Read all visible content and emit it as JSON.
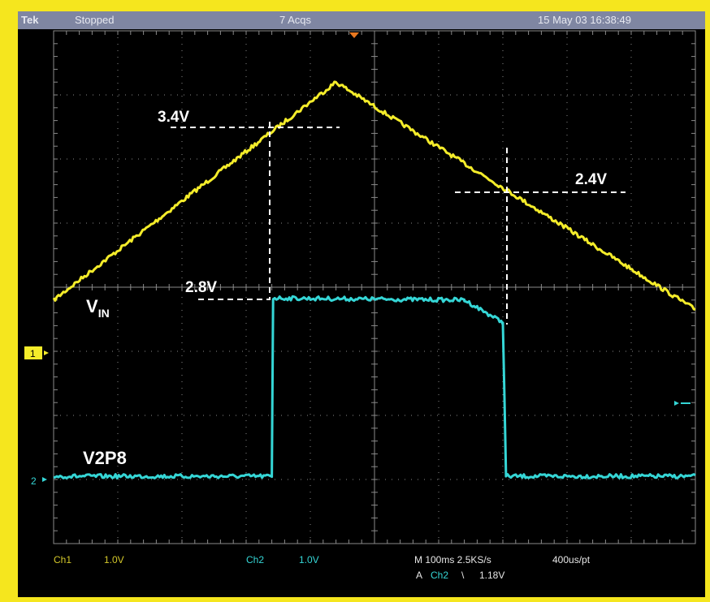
{
  "header": {
    "brand": "Tek",
    "status": "Stopped",
    "acquisitions": "7 Acqs",
    "datetime": "15 May 03 16:38:49"
  },
  "bottom": {
    "ch1_label": "Ch1",
    "ch1_scale": "1.0V",
    "ch2_label": "Ch2",
    "ch2_scale": "1.0V",
    "timebase": "M 100ms 2.5KS/s",
    "record": "400us/pt",
    "trigger_prefix": "A",
    "trigger_source": "Ch2",
    "trigger_slope": "\\",
    "trigger_level": "1.18V"
  },
  "markers": {
    "ch1": "1",
    "ch2": "2"
  },
  "colors": {
    "ch1": "#f4ec2a",
    "ch2": "#35d6d6",
    "grid": "#8a8a8a",
    "bottom_text_yellow": "#d4c82a"
  },
  "chart_data": {
    "type": "line",
    "grid": true,
    "x_divisions": 10,
    "y_divisions": 8,
    "annotations": [
      {
        "text": "3.4V",
        "name": "ch1-rising-threshold"
      },
      {
        "text": "2.4V",
        "name": "ch1-falling-threshold"
      },
      {
        "text": "2.8V",
        "name": "ch2-high-level"
      }
    ],
    "series": [
      {
        "name": "V_IN",
        "label_main": "V",
        "label_sub": "IN",
        "channel": "Ch1",
        "x_div": [
          0,
          4.4,
          10
        ],
        "y_div": [
          -0.2,
          3.2,
          -0.35
        ]
      },
      {
        "name": "V2P8",
        "label_main": "V2P8",
        "channel": "Ch2",
        "x_div": [
          0,
          3.4,
          3.42,
          6.4,
          7.0,
          7.05,
          10
        ],
        "y_div": [
          -2.95,
          -2.95,
          -0.17,
          -0.2,
          -0.55,
          -2.95,
          -2.95
        ]
      }
    ]
  }
}
